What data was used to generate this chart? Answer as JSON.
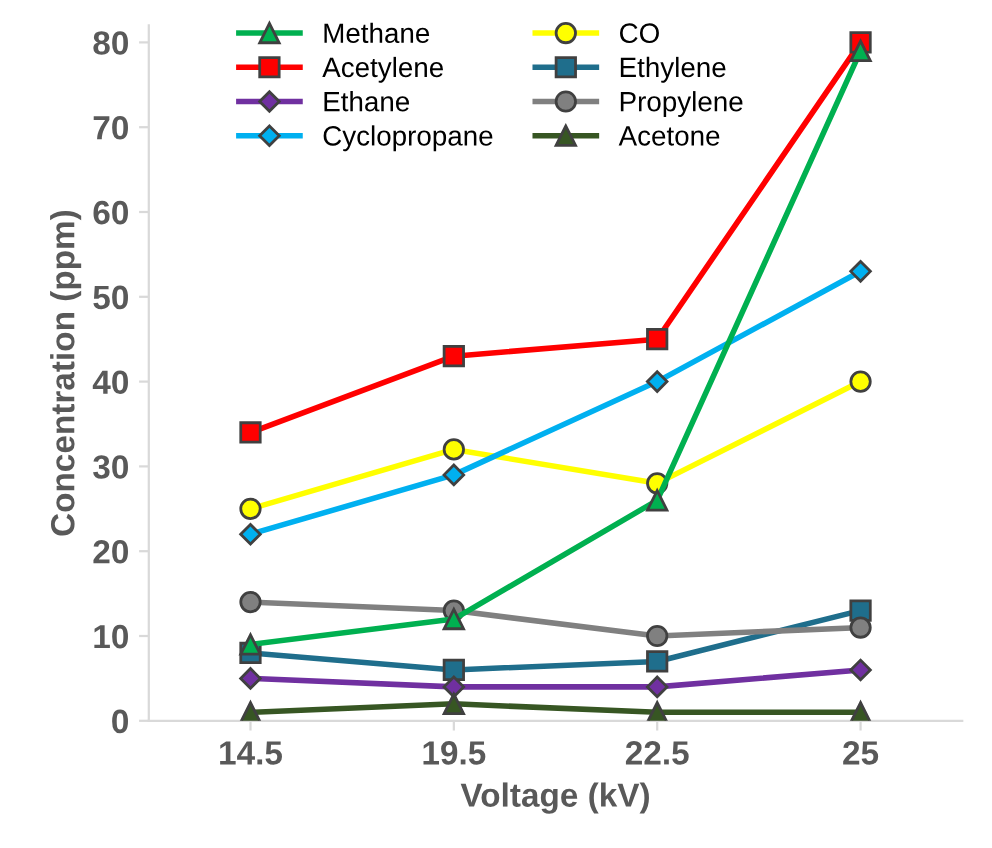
{
  "chart_data": {
    "type": "line",
    "xlabel": "Voltage (kV)",
    "ylabel": "Concentration (ppm)",
    "categories": [
      "14.5",
      "19.5",
      "22.5",
      "25"
    ],
    "series": [
      {
        "name": "Methane",
        "color": "#00b050",
        "marker": "triangle",
        "values": [
          9,
          12,
          26,
          79
        ]
      },
      {
        "name": "CO",
        "color": "#ffff00",
        "marker": "circle",
        "values": [
          25,
          32,
          28,
          40
        ]
      },
      {
        "name": "Acetylene",
        "color": "#ff0000",
        "marker": "square",
        "values": [
          34,
          43,
          45,
          80
        ]
      },
      {
        "name": "Ethylene",
        "color": "#1f6e8c",
        "marker": "square",
        "values": [
          8,
          6,
          7,
          13
        ]
      },
      {
        "name": "Ethane",
        "color": "#7030a0",
        "marker": "diamond",
        "values": [
          5,
          4,
          4,
          6
        ]
      },
      {
        "name": "Propylene",
        "color": "#808080",
        "marker": "circle",
        "values": [
          14,
          13,
          10,
          11
        ]
      },
      {
        "name": "Cyclopropane",
        "color": "#00b0f0",
        "marker": "diamond",
        "values": [
          22,
          29,
          40,
          53
        ]
      },
      {
        "name": "Acetone",
        "color": "#375623",
        "marker": "triangle",
        "values": [
          1,
          2,
          1,
          1
        ]
      }
    ],
    "ylim": [
      0,
      82
    ],
    "yticks": [
      0,
      10,
      20,
      30,
      40,
      50,
      60,
      70,
      80
    ],
    "grid": false,
    "legend": "top"
  }
}
